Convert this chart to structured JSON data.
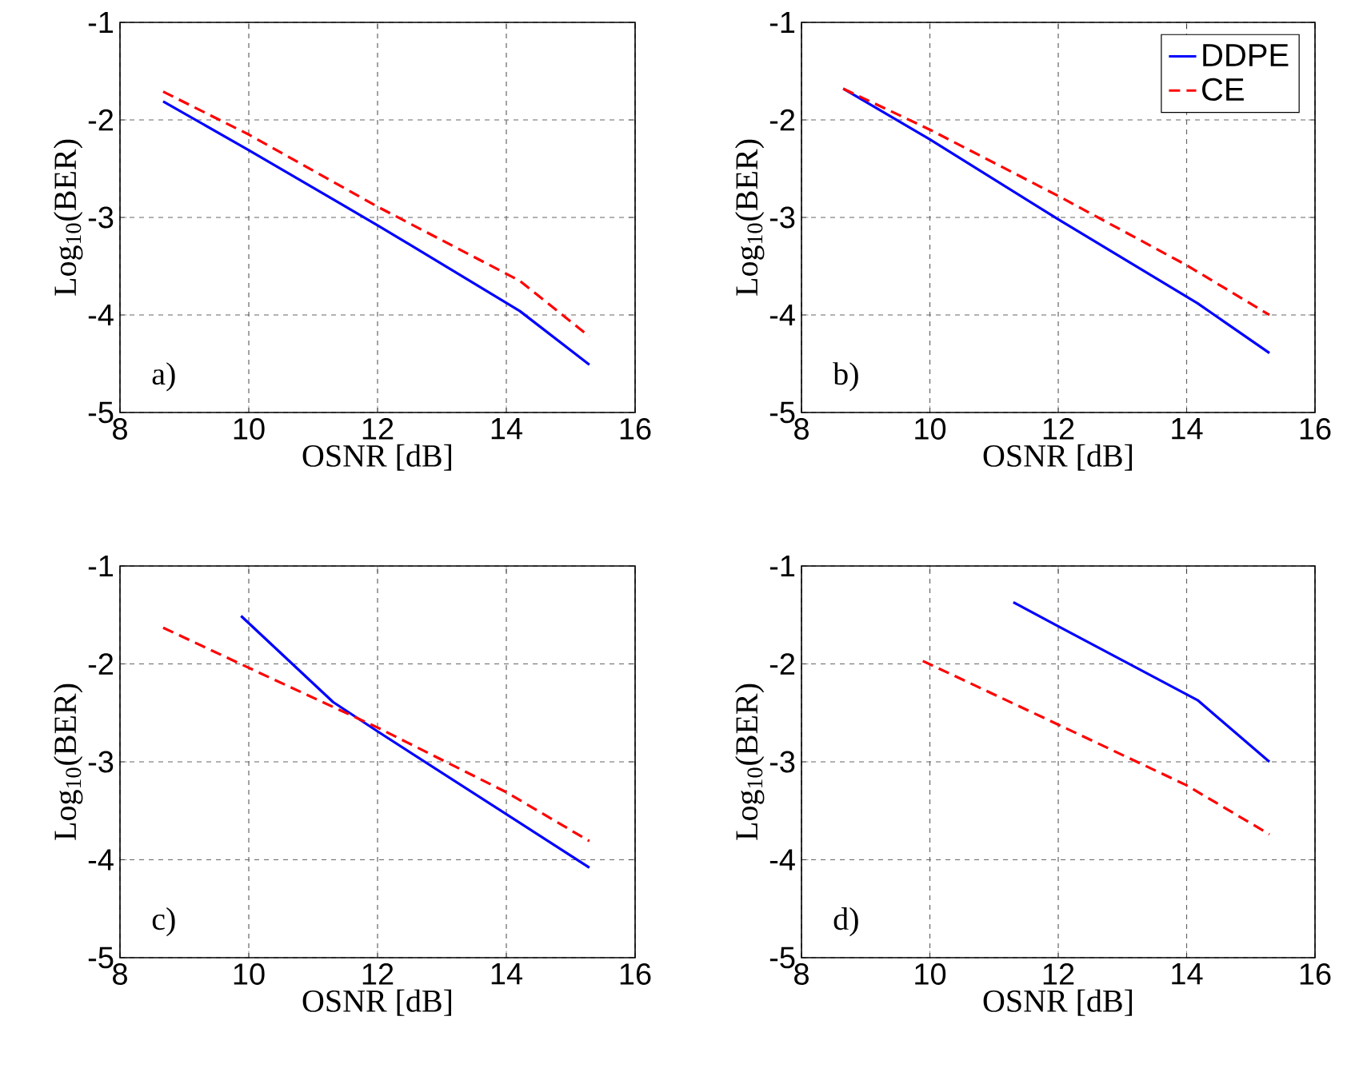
{
  "chart_data": [
    {
      "type": "line",
      "xlabel": "OSNR [dB]",
      "ylabel": "Log$_{10}$(BER)",
      "xlim": [
        8,
        16
      ],
      "ylim": [
        -5,
        -1
      ],
      "xticks": [
        8,
        10,
        12,
        14,
        16
      ],
      "yticks": [
        -5,
        -4,
        -3,
        -2,
        -1
      ],
      "grid": true,
      "legend": false,
      "annotations": [
        "a)"
      ],
      "series": [
        {
          "color": "#0000ff",
          "line_style": "solid",
          "x": [
            8.67,
            10,
            12,
            14.21,
            15.29
          ],
          "values": [
            -1.81,
            -2.31,
            -3.08,
            -3.96,
            -4.51
          ]
        },
        {
          "color": "#ff0000",
          "line_style": "dashed",
          "x": [
            8.67,
            10,
            12,
            14.21,
            15.29
          ],
          "values": [
            -1.71,
            -2.15,
            -2.89,
            -3.65,
            -4.22
          ]
        }
      ]
    },
    {
      "type": "line",
      "xlabel": "OSNR [dB]",
      "ylabel": "Log$_{10}$(BER)",
      "xlim": [
        8,
        16
      ],
      "ylim": [
        -5,
        -1
      ],
      "xticks": [
        8,
        10,
        12,
        14,
        16
      ],
      "yticks": [
        -5,
        -4,
        -3,
        -2,
        -1
      ],
      "grid": true,
      "legend": "top right",
      "annotations": [
        "b)"
      ],
      "series": [
        {
          "name": "DDPE",
          "color": "#0000ff",
          "line_style": "solid",
          "x": [
            8.65,
            10,
            12,
            14.17,
            15.29
          ],
          "values": [
            -1.68,
            -2.2,
            -3.02,
            -3.88,
            -4.39
          ]
        },
        {
          "name": "CE",
          "color": "#ff0000",
          "line_style": "dashed",
          "x": [
            8.65,
            10,
            12,
            14,
            15.29
          ],
          "values": [
            -1.68,
            -2.1,
            -2.78,
            -3.49,
            -4.0
          ]
        }
      ]
    },
    {
      "type": "line",
      "xlabel": "OSNR [dB]",
      "ylabel": "Log$_{10}$(BER)",
      "xlim": [
        8,
        16
      ],
      "ylim": [
        -5,
        -1
      ],
      "xticks": [
        8,
        10,
        12,
        14,
        16
      ],
      "yticks": [
        -5,
        -4,
        -3,
        -2,
        -1
      ],
      "grid": true,
      "legend": false,
      "annotations": [
        "c)"
      ],
      "series": [
        {
          "color": "#0000ff",
          "line_style": "solid",
          "x": [
            9.88,
            11.31,
            12.05,
            15.29
          ],
          "values": [
            -1.51,
            -2.39,
            -2.71,
            -4.08
          ]
        },
        {
          "color": "#ff0000",
          "line_style": "dashed",
          "x": [
            8.67,
            10,
            12,
            14,
            15.29
          ],
          "values": [
            -1.63,
            -2.04,
            -2.65,
            -3.31,
            -3.81
          ]
        }
      ]
    },
    {
      "type": "line",
      "xlabel": "OSNR [dB]",
      "ylabel": "Log$_{10}$(BER)",
      "xlim": [
        8,
        16
      ],
      "ylim": [
        -5,
        -1
      ],
      "xticks": [
        8,
        10,
        12,
        14,
        16
      ],
      "yticks": [
        -5,
        -4,
        -3,
        -2,
        -1
      ],
      "grid": true,
      "legend": false,
      "annotations": [
        "d)"
      ],
      "series": [
        {
          "color": "#0000ff",
          "line_style": "solid",
          "x": [
            11.3,
            12.01,
            14.17,
            15.29
          ],
          "values": [
            -1.37,
            -1.62,
            -2.37,
            -3.0
          ]
        },
        {
          "color": "#ff0000",
          "line_style": "dashed",
          "x": [
            9.89,
            12,
            14,
            15.29
          ],
          "values": [
            -1.97,
            -2.62,
            -3.24,
            -3.74
          ]
        }
      ]
    }
  ]
}
